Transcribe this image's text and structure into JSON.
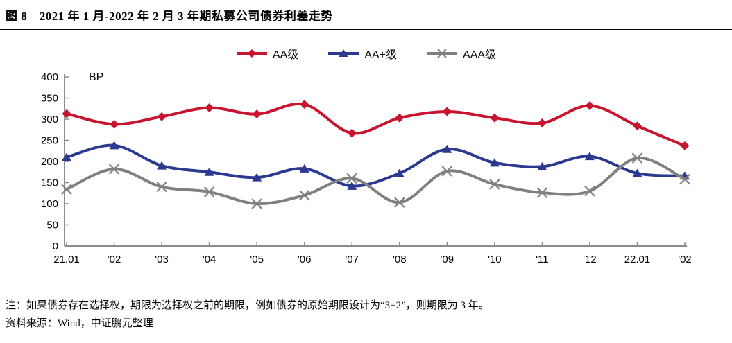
{
  "title": "图 8　2021 年 1 月-2022 年 2 月 3 年期私募公司债券利差走势",
  "chart_data": {
    "type": "line",
    "title": "图 8　2021 年 1 月-2022 年 2 月 3 年期私募公司债券利差走势",
    "unit_label": "BP",
    "categories": [
      "21.01",
      "'02",
      "'03",
      "'04",
      "'05",
      "'06",
      "'07",
      "'08",
      "'09",
      "'10",
      "'11",
      "'12",
      "22.01",
      "'02"
    ],
    "series": [
      {
        "name": "AA级",
        "marker": "diamond",
        "color": "#C8142E",
        "values": [
          313,
          288,
          306,
          327,
          312,
          335,
          267,
          303,
          318,
          303,
          291,
          332,
          284,
          237
        ]
      },
      {
        "name": "AA+级",
        "marker": "triangle",
        "color": "#2B3990",
        "values": [
          210,
          238,
          190,
          175,
          162,
          183,
          142,
          172,
          229,
          197,
          188,
          212,
          172,
          166
        ]
      },
      {
        "name": "AAA级",
        "marker": "x",
        "color": "#808080",
        "values": [
          134,
          182,
          140,
          128,
          100,
          120,
          160,
          103,
          177,
          146,
          126,
          130,
          208,
          158
        ]
      }
    ],
    "ylim": [
      0,
      400
    ],
    "ytick_step": 50,
    "grid": false,
    "legend_position": "top",
    "axis_color": "#8C8C8C"
  },
  "notes": {
    "note": "注：如果债券存在选择权，期限为选择权之前的期限，例如债券的原始期限设计为“3+2”，则期限为 3 年。",
    "source": "资料来源：Wind，中证鹏元整理"
  }
}
